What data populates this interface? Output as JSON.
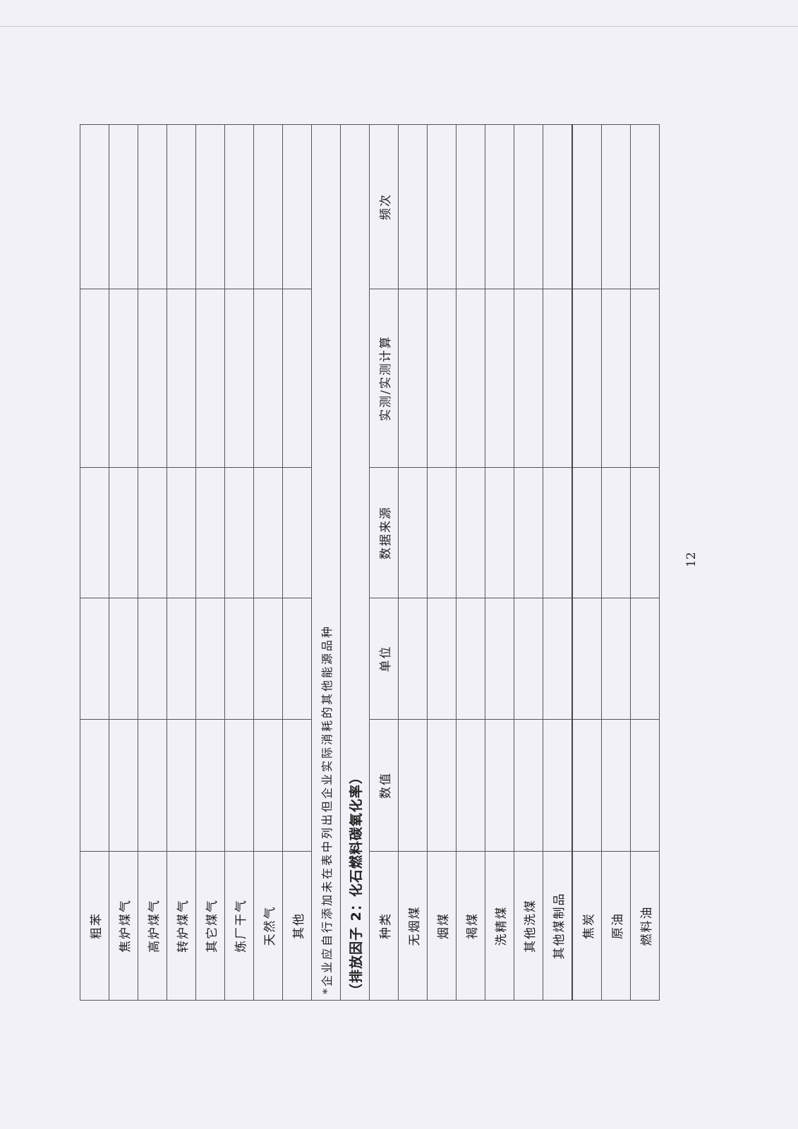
{
  "table1_rows": [
    "粗苯",
    "焦炉煤气",
    "高炉煤气",
    "转炉煤气",
    "其它煤气",
    "炼厂干气",
    "天然气",
    "其他"
  ],
  "note": "*企业应自行添加未在表中列出但企业实际消耗的其他能源品种",
  "section_title": "（排放因子 2：化石燃料碳氧化率）",
  "table2_headers": [
    "种类",
    "数值",
    "单位",
    "数据来源",
    "实测/实测计算",
    "频次"
  ],
  "table2_rows": [
    "无烟煤",
    "烟煤",
    "褐煤",
    "洗精煤",
    "其他洗煤",
    "其他煤制品",
    "焦炭",
    "原油",
    "燃料油"
  ],
  "page_number": "12"
}
